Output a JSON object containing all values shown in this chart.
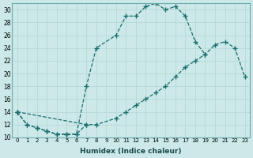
{
  "xlabel": "Humidex (Indice chaleur)",
  "background_color": "#cce8e8",
  "line_color": "#1a6e6e",
  "grid_color": "#b0d4d4",
  "xlim": [
    -0.5,
    23.5
  ],
  "ylim": [
    10,
    31
  ],
  "yticks": [
    10,
    12,
    14,
    16,
    18,
    20,
    22,
    24,
    26,
    28,
    30
  ],
  "xticks": [
    0,
    1,
    2,
    3,
    4,
    5,
    6,
    7,
    8,
    9,
    10,
    11,
    12,
    13,
    14,
    15,
    16,
    17,
    18,
    19,
    20,
    21,
    22,
    23
  ],
  "line1_x": [
    0,
    1,
    2,
    3,
    4,
    5,
    6,
    7
  ],
  "line1_y": [
    14,
    12,
    11.5,
    11,
    10.5,
    10.5,
    10.5,
    12
  ],
  "line2_x": [
    0,
    1,
    2,
    3,
    4,
    5,
    6,
    7,
    8,
    10,
    11,
    12,
    13,
    14,
    15,
    16,
    17,
    18,
    19
  ],
  "line2_y": [
    14,
    12,
    11.5,
    11,
    10.5,
    10.5,
    10.5,
    18,
    24,
    26,
    29,
    29,
    30.5,
    31,
    30,
    30.5,
    29,
    25,
    23
  ],
  "line3_x": [
    0,
    7,
    8,
    10,
    11,
    12,
    13,
    14,
    15,
    16,
    17,
    18,
    19,
    20,
    21,
    22,
    23
  ],
  "line3_y": [
    14,
    12,
    12,
    13,
    14,
    15,
    16,
    17,
    18,
    19.5,
    21,
    22,
    23,
    24.5,
    25,
    24,
    19.5
  ],
  "marker": "+"
}
